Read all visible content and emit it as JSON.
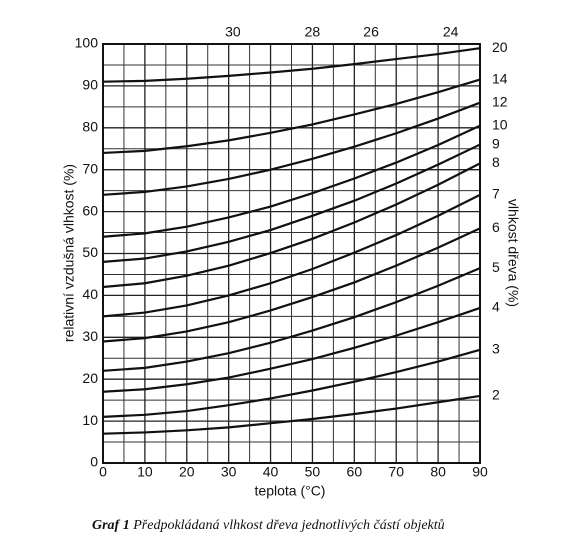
{
  "chart_data": {
    "type": "line",
    "x_label": "teplota (°C)",
    "y_label": "relativní vzdušná vlhkost (%)",
    "y2_label": "vlhkost dřeva (%)",
    "caption_bold": "Graf 1",
    "caption": "Předpokládaná vlhkost dřeva jednotlivých částí objektů",
    "x": [
      0,
      10,
      20,
      30,
      40,
      50,
      60,
      70,
      80,
      90
    ],
    "xlim": [
      0,
      90
    ],
    "ylim": [
      0,
      100
    ],
    "xticks": [
      0,
      10,
      20,
      30,
      40,
      50,
      60,
      70,
      80,
      90
    ],
    "yticks": [
      0,
      10,
      20,
      30,
      40,
      50,
      60,
      70,
      80,
      90,
      100
    ],
    "x_grid": [
      5,
      15,
      25,
      35,
      45,
      55,
      65,
      75,
      85
    ],
    "y_grid": [
      5,
      15,
      25,
      35,
      45,
      55,
      65,
      75,
      85,
      95
    ],
    "grid": true,
    "color": "#111111",
    "top_labels": [
      {
        "text": "30",
        "x": 31
      },
      {
        "text": "28",
        "x": 50
      },
      {
        "text": "26",
        "x": 64
      },
      {
        "text": "24",
        "x": 83
      }
    ],
    "series": [
      {
        "name": "2",
        "values": [
          7,
          7.3,
          7.8,
          8.5,
          9.5,
          10.5,
          11.7,
          13,
          14.5,
          16
        ]
      },
      {
        "name": "3",
        "values": [
          11,
          11.5,
          12.4,
          13.8,
          15.4,
          17.3,
          19.4,
          21.7,
          24.2,
          27
        ]
      },
      {
        "name": "4",
        "values": [
          17,
          17.6,
          18.8,
          20.4,
          22.5,
          24.8,
          27.5,
          30.4,
          33.6,
          37
        ]
      },
      {
        "name": "5",
        "values": [
          22,
          22.7,
          24.2,
          26.2,
          28.7,
          31.6,
          34.8,
          38.4,
          42.3,
          46.5
        ]
      },
      {
        "name": "6",
        "values": [
          29,
          29.8,
          31.4,
          33.6,
          36.4,
          39.6,
          43.1,
          47.1,
          51.4,
          56
        ]
      },
      {
        "name": "7",
        "values": [
          35,
          35.9,
          37.6,
          40,
          42.9,
          46.3,
          50.2,
          54.4,
          59,
          64
        ]
      },
      {
        "name": "8",
        "values": [
          42,
          42.9,
          44.7,
          47.1,
          50.1,
          53.5,
          57.4,
          61.7,
          66.4,
          71.5
        ]
      },
      {
        "name": "9",
        "values": [
          48,
          48.8,
          50.5,
          52.8,
          55.6,
          59,
          62.6,
          66.7,
          71.2,
          76
        ]
      },
      {
        "name": "10",
        "values": [
          54,
          54.8,
          56.4,
          58.6,
          61.2,
          64.4,
          67.9,
          71.7,
          75.9,
          80.5
        ]
      },
      {
        "name": "12",
        "values": [
          64,
          64.7,
          66,
          67.8,
          70,
          72.6,
          75.5,
          78.7,
          82.2,
          86
        ]
      },
      {
        "name": "14",
        "values": [
          74,
          74.5,
          75.6,
          77,
          78.8,
          80.8,
          83.2,
          85.7,
          88.5,
          91.5
        ]
      },
      {
        "name": "20",
        "values": [
          91,
          91.2,
          91.7,
          92.4,
          93.2,
          94.1,
          95.2,
          96.4,
          97.6,
          99
        ]
      }
    ]
  }
}
